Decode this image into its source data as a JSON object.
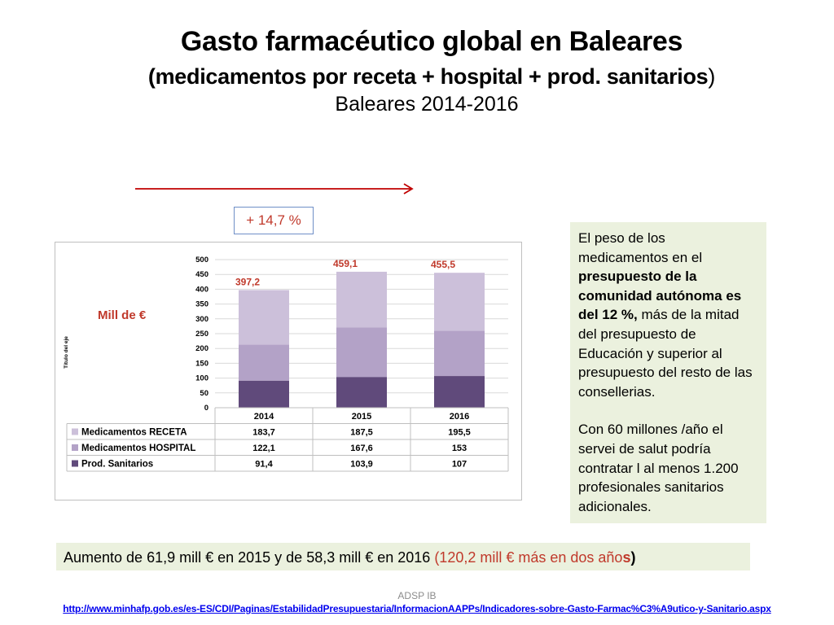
{
  "header": {
    "title": "Gasto farmacéutico global en Baleares",
    "subtitle_main": "(medicamentos por receta + hospital + prod. sanitarios",
    "subtitle_close": ")",
    "years": "Baleares 2014-2016"
  },
  "growth_label": "+ 14,7 %",
  "colors": {
    "receta": "#ccc0da",
    "hospital": "#b3a2c7",
    "sanitarios": "#604a7b",
    "accent_red": "#c0392b",
    "box_green": "#ebf1de"
  },
  "chart_data": {
    "type": "bar",
    "stacked": true,
    "categories": [
      "2014",
      "2015",
      "2016"
    ],
    "series": [
      {
        "name": "Prod. Sanitarios",
        "values": [
          91.4,
          103.9,
          107
        ],
        "display": [
          "91,4",
          "103,9",
          "107"
        ]
      },
      {
        "name": "Medicamentos HOSPITAL",
        "values": [
          122.1,
          167.6,
          153
        ],
        "display": [
          "122,1",
          "167,6",
          "153"
        ]
      },
      {
        "name": "Medicamentos RECETA",
        "values": [
          183.7,
          187.5,
          195.5
        ],
        "display": [
          "183,7",
          "187,5",
          "195,5"
        ]
      }
    ],
    "totals": [
      "397,2",
      "459,1",
      "455,5"
    ],
    "ylim": [
      0,
      500
    ],
    "yticks": [
      0,
      50,
      100,
      150,
      200,
      250,
      300,
      350,
      400,
      450,
      500
    ],
    "ylabel": "Título del eje",
    "unit_label": "Mill de €",
    "grid": true,
    "legend": "data-table"
  },
  "side_note": {
    "p1_a": "El peso de los medicamentos en el ",
    "p1_bold": "presupuesto de la comunidad autónoma es del 12 %,",
    "p1_b": " más de la mitad del presupuesto de Educación y superior al presupuesto del resto de las consellerias.",
    "p2": "Con 60 millones /año el servei de salut  podría contratar l al menos 1.200 profesionales sanitarios adicionales."
  },
  "bottom_note": {
    "main": "Aumento de 61,9 mill € en 2015  y de 58,3 mill  € en 2016 ",
    "red": " (120,2 mill € más en dos año",
    "red_bold": "s",
    "close": ")"
  },
  "footer": {
    "org": "ADSP IB",
    "link": "http://www.minhafp.gob.es/es-ES/CDI/Paginas/EstabilidadPresupuestaria/InformacionAAPPs/Indicadores-sobre-Gasto-Farmac%C3%A9utico-y-Sanitario.aspx"
  }
}
